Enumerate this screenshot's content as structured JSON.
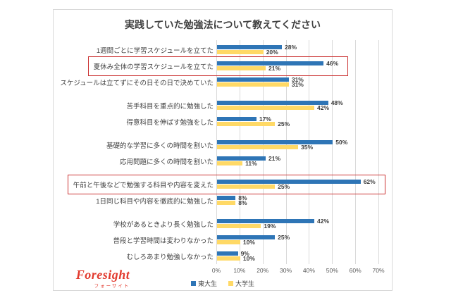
{
  "title": "実践していた勉強法について教えてください",
  "logo": {
    "text": "Foresight",
    "subtext": "フォーサイト"
  },
  "colors": {
    "series_blue": "#2E75B6",
    "series_yellow": "#FFD966",
    "highlight_red": "#CB3333",
    "gridline": "#D9D9D9",
    "panel_border": "#D9D9D9"
  },
  "chart_data": {
    "type": "bar",
    "orientation": "horizontal",
    "title": "実践していた勉強法について教えてください",
    "xlim": [
      0,
      70
    ],
    "x_ticks": [
      "0%",
      "10%",
      "20%",
      "30%",
      "40%",
      "50%",
      "60%",
      "70%"
    ],
    "grid": true,
    "legend_position": "bottom",
    "series": [
      {
        "name": "東大生",
        "color": "#2E75B6"
      },
      {
        "name": "大学生",
        "color": "#FFD966"
      }
    ],
    "groups": [
      {
        "items": [
          {
            "label": "1週間ごとに学習スケジュールを立てた",
            "values": [
              28,
              20
            ],
            "highlighted": false
          },
          {
            "label": "夏休み全体の学習スケジュールを立てた",
            "values": [
              46,
              21
            ],
            "highlighted": true
          },
          {
            "label": "スケジュールは立てずにその日その日で決めていた",
            "values": [
              31,
              31
            ],
            "highlighted": false
          }
        ]
      },
      {
        "items": [
          {
            "label": "苦手科目を重点的に勉強した",
            "values": [
              48,
              42
            ],
            "highlighted": false
          },
          {
            "label": "得意科目を伸ばす勉強をした",
            "values": [
              17,
              25
            ],
            "highlighted": false
          }
        ]
      },
      {
        "items": [
          {
            "label": "基礎的な学習に多くの時間を割いた",
            "values": [
              50,
              35
            ],
            "highlighted": false
          },
          {
            "label": "応用問題に多くの時間を割いた",
            "values": [
              21,
              11
            ],
            "highlighted": false
          }
        ]
      },
      {
        "items": [
          {
            "label": "午前と午後などで勉強する科目や内容を変えた",
            "values": [
              62,
              25
            ],
            "highlighted": true
          },
          {
            "label": "1日同じ科目や内容を徹底的に勉強した",
            "values": [
              8,
              8
            ],
            "highlighted": false
          }
        ]
      },
      {
        "items": [
          {
            "label": "学校があるときより長く勉強した",
            "values": [
              42,
              19
            ],
            "highlighted": false
          },
          {
            "label": "普段と学習時間は変わりなかった",
            "values": [
              25,
              10
            ],
            "highlighted": false
          },
          {
            "label": "むしろあまり勉強しなかった",
            "values": [
              9,
              10
            ],
            "highlighted": false
          }
        ]
      }
    ]
  }
}
